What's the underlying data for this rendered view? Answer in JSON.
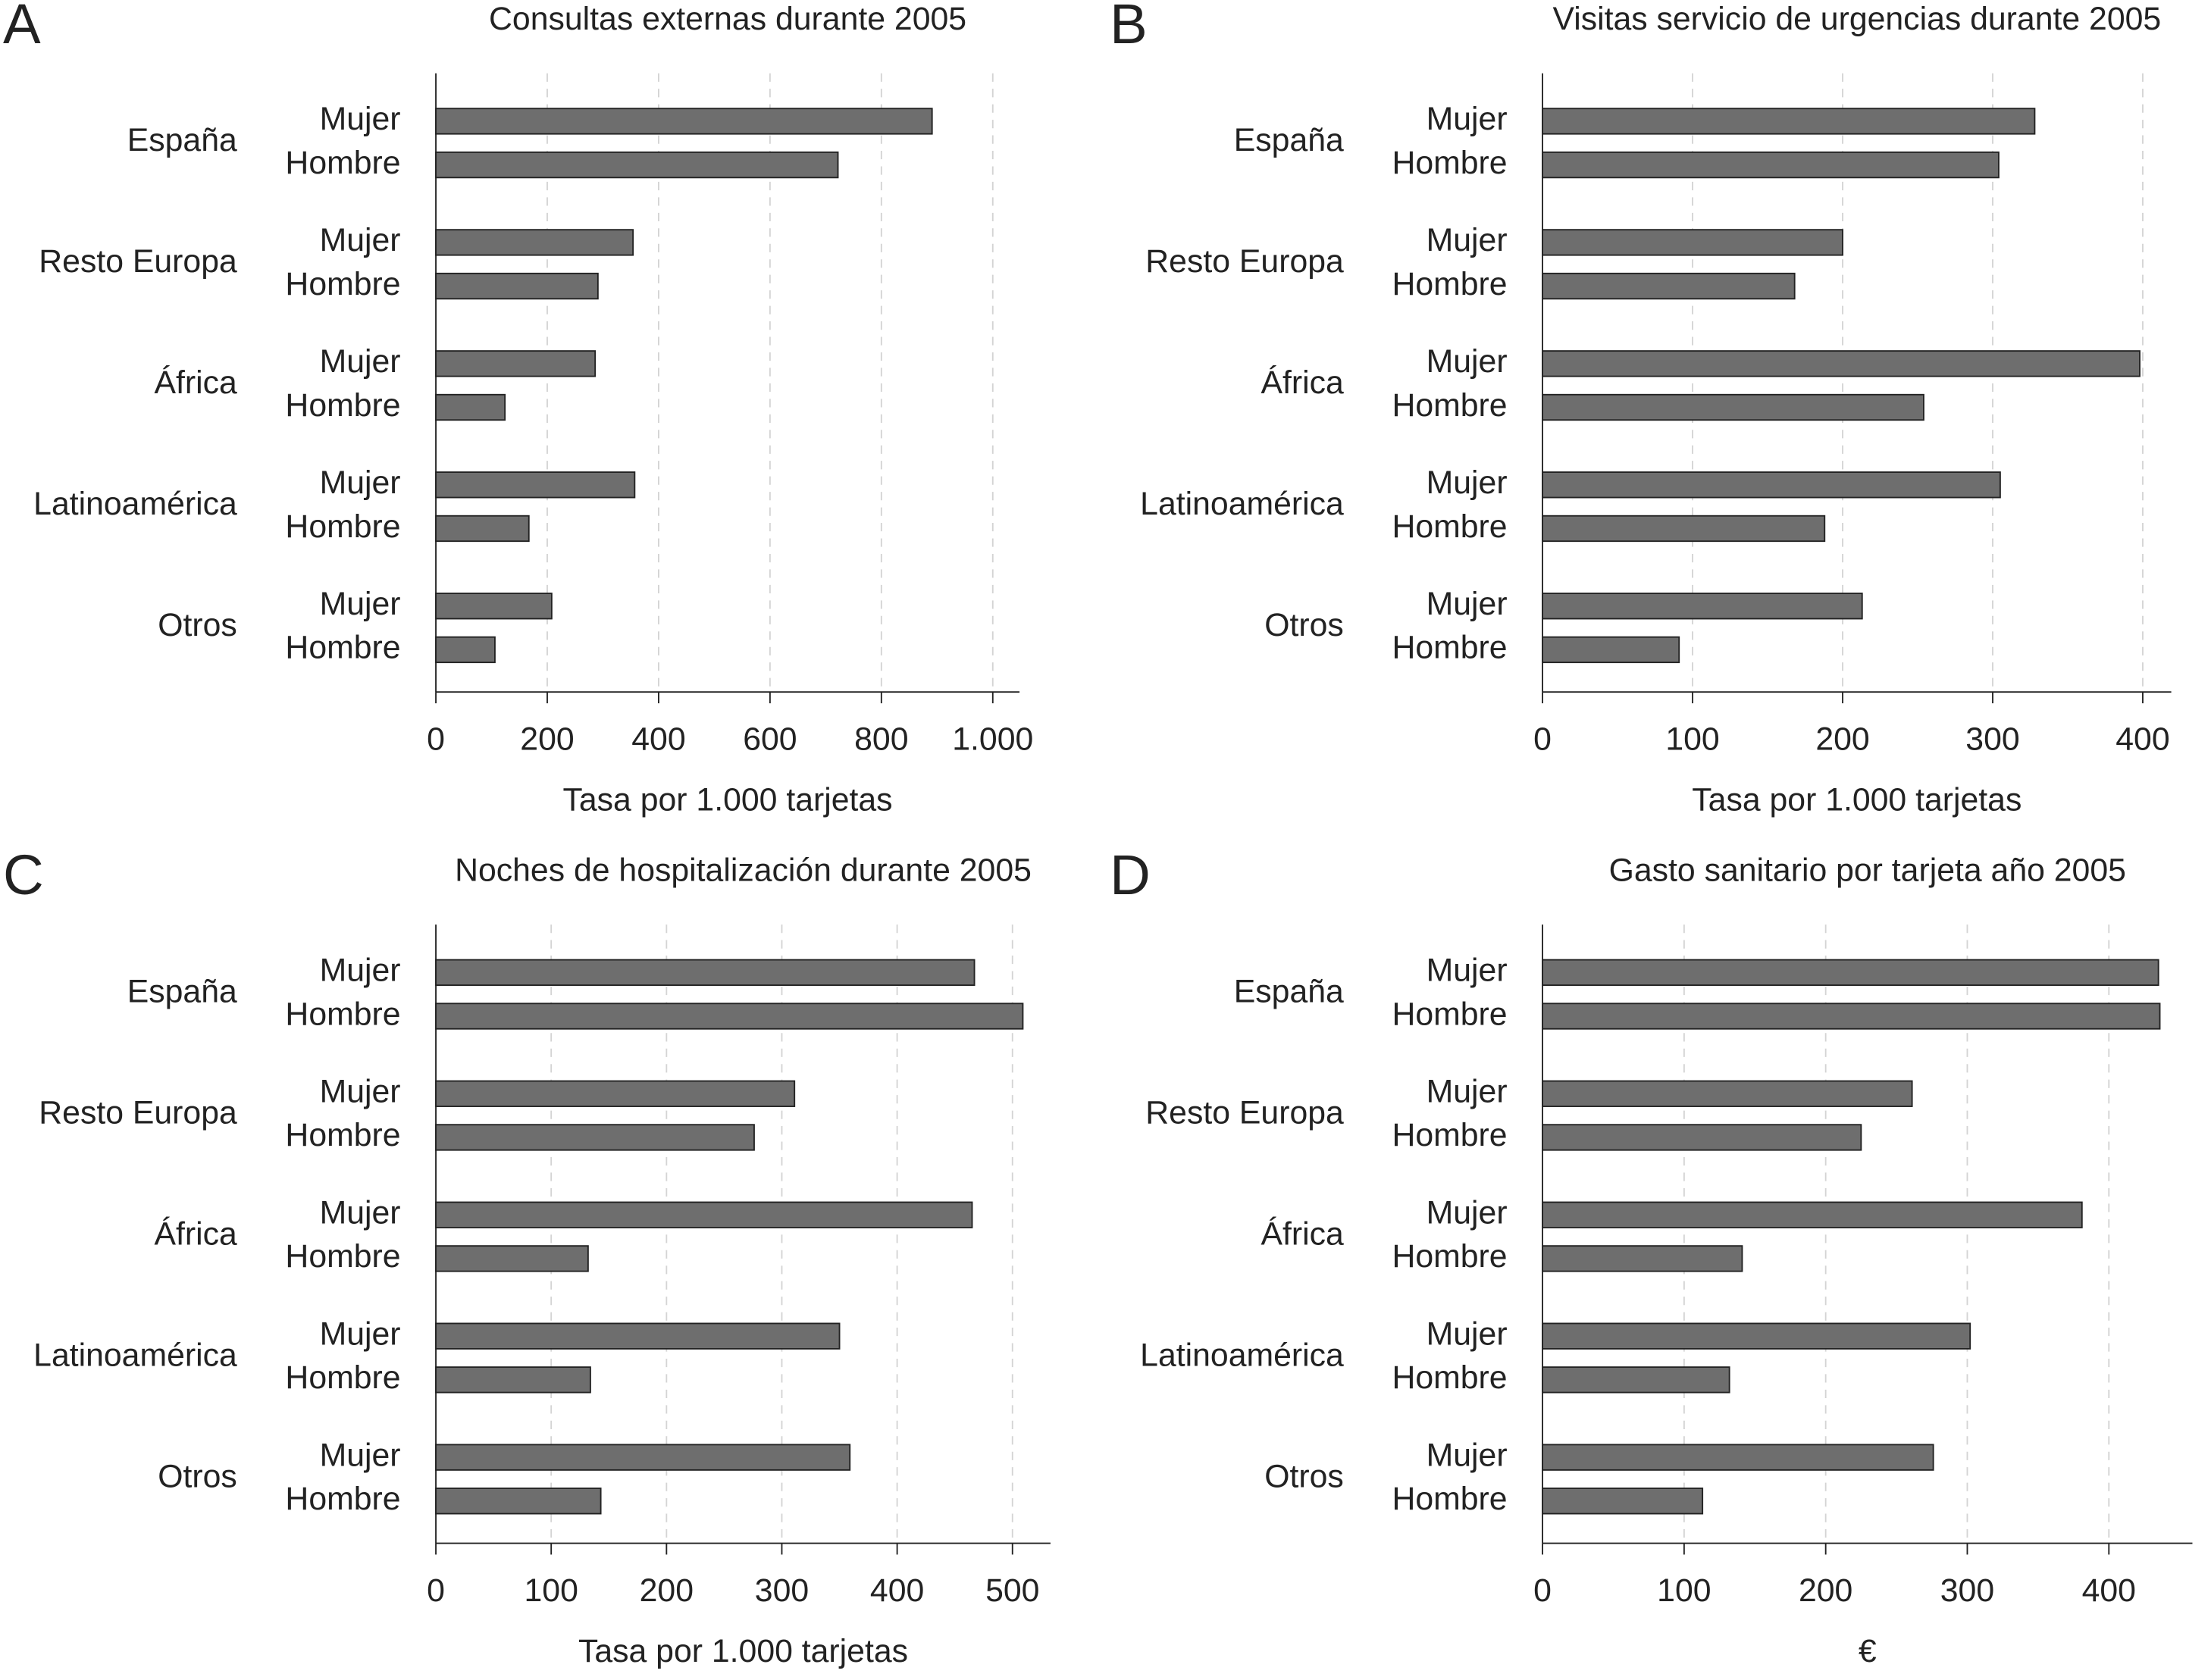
{
  "chart_data": [
    {
      "type": "bar",
      "orientation": "horizontal",
      "panel_label": "A",
      "title": "Consultas externas durante 2005",
      "categories": [
        "España",
        "Resto Europa",
        "África",
        "Latinoamérica",
        "Otros"
      ],
      "series": [
        {
          "name": "Mujer",
          "color": "#6e6e6e",
          "values": [
            891,
            354,
            286,
            357,
            208
          ]
        },
        {
          "name": "Hombre",
          "color": "#6e6e6e",
          "values": [
            722,
            291,
            124,
            167,
            106
          ]
        }
      ],
      "xlim": [
        0,
        1048
      ],
      "xticks": [
        0,
        200,
        400,
        600,
        800,
        {
          "value": 1000,
          "label": "1.000"
        }
      ],
      "xlabel": "Tasa por 1.000 tarjetas",
      "grid": true
    },
    {
      "type": "bar",
      "orientation": "horizontal",
      "panel_label": "B",
      "title": "Visitas servicio de urgencias durante 2005",
      "categories": [
        "España",
        "Resto Europa",
        "África",
        "Latinoamérica",
        "Otros"
      ],
      "series": [
        {
          "name": "Mujer",
          "color": "#6e6e6e",
          "values": [
            328,
            200,
            398,
            305,
            213
          ]
        },
        {
          "name": "Hombre",
          "color": "#6e6e6e",
          "values": [
            304,
            168,
            254,
            188,
            91
          ]
        }
      ],
      "xlim": [
        0,
        419
      ],
      "xticks": [
        0,
        100,
        200,
        300,
        400
      ],
      "xlabel": "Tasa por 1.000 tarjetas",
      "grid": true
    },
    {
      "type": "bar",
      "orientation": "horizontal",
      "panel_label": "C",
      "title": "Noches de hospitalización durante 2005",
      "categories": [
        "España",
        "Resto Europa",
        "África",
        "Latinoamérica",
        "Otros"
      ],
      "series": [
        {
          "name": "Mujer",
          "color": "#6e6e6e",
          "values": [
            467,
            311,
            465,
            350,
            359
          ]
        },
        {
          "name": "Hombre",
          "color": "#6e6e6e",
          "values": [
            509,
            276,
            132,
            134,
            143
          ]
        }
      ],
      "xlim": [
        0,
        533
      ],
      "xticks": [
        0,
        100,
        200,
        300,
        400,
        500
      ],
      "xlabel": "Tasa por 1.000 tarjetas",
      "grid": true
    },
    {
      "type": "bar",
      "orientation": "horizontal",
      "panel_label": "D",
      "title": "Gasto sanitario por tarjeta año 2005",
      "categories": [
        "España",
        "Resto Europa",
        "África",
        "Latinoamérica",
        "Otros"
      ],
      "series": [
        {
          "name": "Mujer",
          "color": "#6e6e6e",
          "values": [
            435,
            261,
            381,
            302,
            276
          ]
        },
        {
          "name": "Hombre",
          "color": "#6e6e6e",
          "values": [
            436,
            225,
            141,
            132,
            113
          ]
        }
      ],
      "xlim": [
        0,
        459
      ],
      "xticks": [
        0,
        100,
        200,
        300,
        400
      ],
      "xlabel": "€",
      "grid": true
    }
  ]
}
